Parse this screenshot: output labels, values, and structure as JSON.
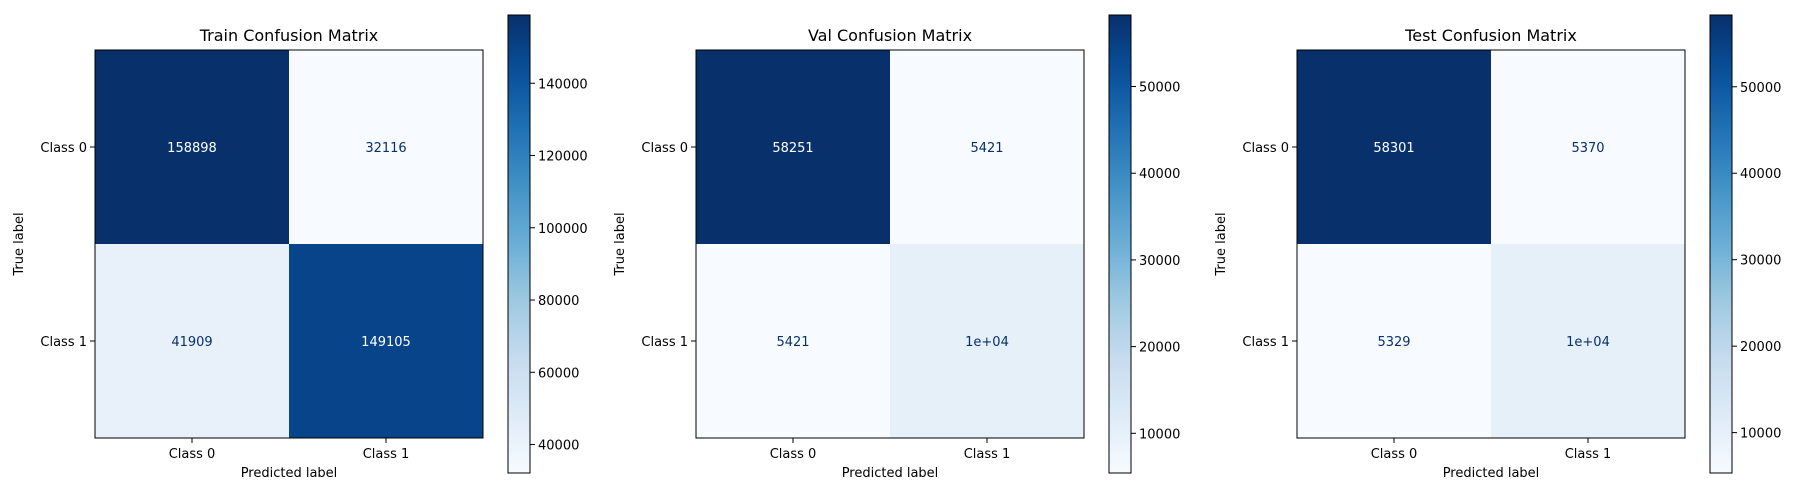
{
  "chart_data": [
    {
      "type": "heatmap",
      "title": "Train Confusion Matrix",
      "xlabel": "Predicted label",
      "ylabel": "True label",
      "x_categories": [
        "Class 0",
        "Class 1"
      ],
      "y_categories": [
        "Class 0",
        "Class 1"
      ],
      "values": [
        [
          158898,
          32116
        ],
        [
          41909,
          149105
        ]
      ],
      "cell_labels": [
        [
          "158898",
          "32116"
        ],
        [
          "41909",
          "149105"
        ]
      ],
      "colormap": "Blues",
      "colorbar": {
        "range": [
          32116,
          158898
        ],
        "ticks": [
          40000,
          60000,
          80000,
          100000,
          120000,
          140000
        ],
        "tick_labels": [
          "40000",
          "60000",
          "80000",
          "100000",
          "120000",
          "140000"
        ]
      }
    },
    {
      "type": "heatmap",
      "title": "Val Confusion Matrix",
      "xlabel": "Predicted label",
      "ylabel": "True label",
      "x_categories": [
        "Class 0",
        "Class 1"
      ],
      "y_categories": [
        "Class 0",
        "Class 1"
      ],
      "values": [
        [
          58251,
          5421
        ],
        [
          5421,
          10000
        ]
      ],
      "cell_labels": [
        [
          "58251",
          "5421"
        ],
        [
          "5421",
          "1e+04"
        ]
      ],
      "colormap": "Blues",
      "colorbar": {
        "range": [
          5421,
          58251
        ],
        "ticks": [
          10000,
          20000,
          30000,
          40000,
          50000
        ],
        "tick_labels": [
          "10000",
          "20000",
          "30000",
          "40000",
          "50000"
        ]
      }
    },
    {
      "type": "heatmap",
      "title": "Test Confusion Matrix",
      "xlabel": "Predicted label",
      "ylabel": "True label",
      "x_categories": [
        "Class 0",
        "Class 1"
      ],
      "y_categories": [
        "Class 0",
        "Class 1"
      ],
      "values": [
        [
          58301,
          5370
        ],
        [
          5329,
          10000
        ]
      ],
      "cell_labels": [
        [
          "58301",
          "5370"
        ],
        [
          "5329",
          "1e+04"
        ]
      ],
      "colormap": "Blues",
      "colorbar": {
        "range": [
          5329,
          58301
        ],
        "ticks": [
          10000,
          20000,
          30000,
          40000,
          50000
        ],
        "tick_labels": [
          "10000",
          "20000",
          "30000",
          "40000",
          "50000"
        ]
      }
    }
  ]
}
